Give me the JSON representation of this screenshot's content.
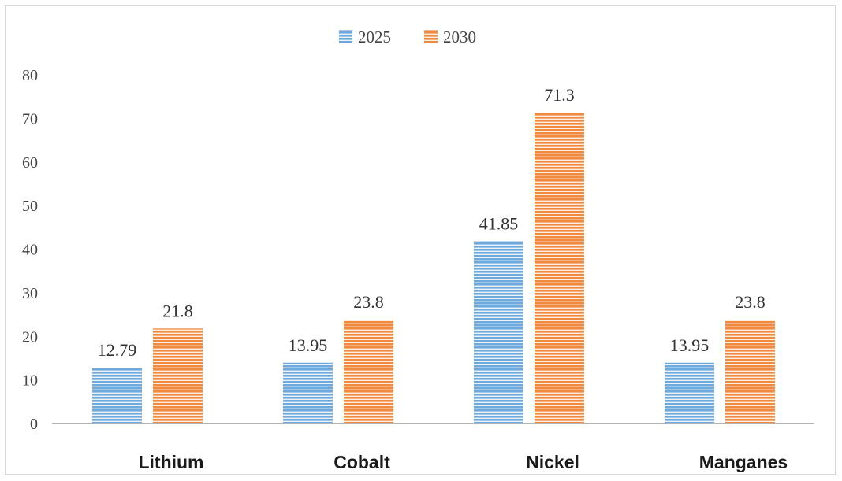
{
  "chart_data": {
    "type": "bar",
    "categories": [
      "Lithium",
      "Cobalt",
      "Nickel",
      "Manganes"
    ],
    "series": [
      {
        "name": "2025",
        "values": [
          12.79,
          13.95,
          41.85,
          13.95
        ],
        "color": "#5b9bd5",
        "labels": [
          "12.79",
          "13.95",
          "41.85",
          "13.95"
        ]
      },
      {
        "name": "2030",
        "values": [
          21.8,
          23.8,
          71.3,
          23.8
        ],
        "color": "#ed7d31",
        "labels": [
          "21.8",
          "23.8",
          "71.3",
          "23.8"
        ]
      }
    ],
    "yticks": [
      "0",
      "10",
      "20",
      "30",
      "40",
      "50",
      "60",
      "70",
      "80"
    ],
    "ylim": [
      0,
      80
    ],
    "grid": false,
    "legend": "top-center"
  }
}
